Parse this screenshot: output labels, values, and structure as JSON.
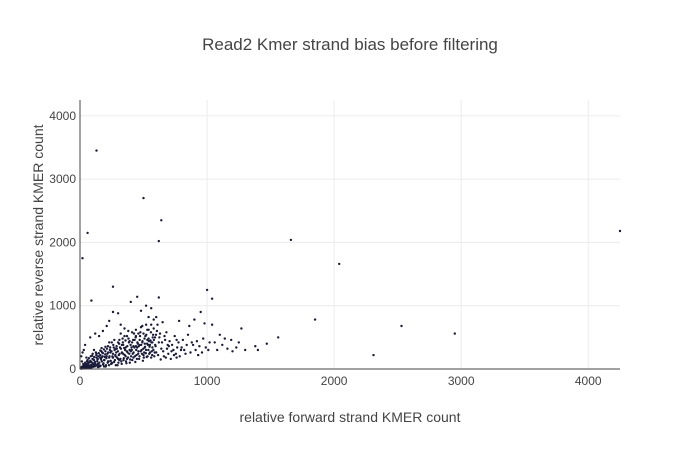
{
  "chart_data": {
    "type": "scatter",
    "title": "Read2 Kmer strand bias before filtering",
    "xlabel": "relative forward strand KMER count",
    "ylabel": "relative reverse strand KMER count",
    "xlim": [
      0,
      4250
    ],
    "ylim": [
      0,
      4250
    ],
    "xticks": [
      0,
      1000,
      2000,
      3000,
      4000
    ],
    "yticks": [
      0,
      1000,
      2000,
      3000,
      4000
    ],
    "grid": true,
    "legend": "none",
    "point_color": "#1a1a3a",
    "points": [
      [
        130,
        3450
      ],
      [
        500,
        2700
      ],
      [
        640,
        2350
      ],
      [
        620,
        2020
      ],
      [
        60,
        2150
      ],
      [
        20,
        1750
      ],
      [
        1660,
        2040
      ],
      [
        2040,
        1660
      ],
      [
        4250,
        2180
      ],
      [
        1850,
        780
      ],
      [
        2530,
        680
      ],
      [
        2950,
        560
      ],
      [
        2310,
        220
      ],
      [
        1560,
        500
      ],
      [
        1470,
        400
      ],
      [
        1400,
        300
      ],
      [
        1380,
        360
      ],
      [
        1270,
        640
      ],
      [
        1190,
        460
      ],
      [
        1140,
        480
      ],
      [
        1100,
        540
      ],
      [
        1230,
        340
      ],
      [
        1000,
        1250
      ],
      [
        1040,
        1110
      ],
      [
        950,
        900
      ],
      [
        900,
        780
      ],
      [
        860,
        680
      ],
      [
        780,
        760
      ],
      [
        980,
        720
      ],
      [
        1040,
        700
      ],
      [
        1060,
        420
      ],
      [
        990,
        340
      ],
      [
        920,
        440
      ],
      [
        890,
        380
      ],
      [
        850,
        540
      ],
      [
        820,
        300
      ],
      [
        760,
        460
      ],
      [
        700,
        360
      ],
      [
        680,
        580
      ],
      [
        620,
        1130
      ],
      [
        520,
        1000
      ],
      [
        480,
        920
      ],
      [
        450,
        1140
      ],
      [
        400,
        1060
      ],
      [
        260,
        1300
      ],
      [
        90,
        1080
      ],
      [
        560,
        960
      ],
      [
        580,
        780
      ],
      [
        600,
        820
      ],
      [
        530,
        620
      ],
      [
        540,
        820
      ],
      [
        490,
        680
      ],
      [
        440,
        520
      ],
      [
        350,
        640
      ],
      [
        320,
        700
      ],
      [
        300,
        880
      ],
      [
        260,
        900
      ],
      [
        230,
        760
      ],
      [
        210,
        680
      ],
      [
        180,
        600
      ],
      [
        150,
        520
      ],
      [
        120,
        560
      ],
      [
        80,
        500
      ],
      [
        40,
        380
      ],
      [
        30,
        300
      ],
      [
        20,
        260
      ],
      [
        10,
        200
      ],
      [
        15,
        120
      ],
      [
        25,
        80
      ],
      [
        45,
        60
      ],
      [
        60,
        140
      ],
      [
        75,
        30
      ],
      [
        90,
        110
      ],
      [
        100,
        240
      ],
      [
        110,
        300
      ],
      [
        130,
        180
      ],
      [
        140,
        80
      ],
      [
        160,
        220
      ],
      [
        170,
        330
      ],
      [
        190,
        140
      ],
      [
        200,
        280
      ],
      [
        220,
        360
      ],
      [
        230,
        180
      ],
      [
        250,
        420
      ],
      [
        260,
        240
      ],
      [
        280,
        320
      ],
      [
        300,
        160
      ],
      [
        310,
        460
      ],
      [
        330,
        260
      ],
      [
        340,
        380
      ],
      [
        360,
        200
      ],
      [
        370,
        520
      ],
      [
        390,
        300
      ],
      [
        410,
        420
      ],
      [
        420,
        180
      ],
      [
        440,
        360
      ],
      [
        460,
        280
      ],
      [
        470,
        460
      ],
      [
        500,
        220
      ],
      [
        510,
        400
      ],
      [
        520,
        300
      ],
      [
        540,
        480
      ],
      [
        560,
        180
      ],
      [
        570,
        340
      ],
      [
        600,
        260
      ],
      [
        620,
        420
      ],
      [
        640,
        320
      ],
      [
        660,
        200
      ],
      [
        690,
        380
      ],
      [
        720,
        280
      ],
      [
        740,
        220
      ],
      [
        800,
        340
      ],
      [
        760,
        180
      ],
      [
        50,
        180
      ],
      [
        35,
        40
      ],
      [
        65,
        90
      ],
      [
        85,
        200
      ],
      [
        95,
        50
      ],
      [
        105,
        150
      ],
      [
        115,
        70
      ],
      [
        125,
        260
      ],
      [
        135,
        120
      ],
      [
        145,
        200
      ],
      [
        155,
        40
      ],
      [
        165,
        150
      ],
      [
        175,
        260
      ],
      [
        185,
        90
      ],
      [
        195,
        190
      ],
      [
        205,
        60
      ],
      [
        215,
        240
      ],
      [
        225,
        120
      ],
      [
        235,
        300
      ],
      [
        245,
        80
      ],
      [
        255,
        200
      ],
      [
        265,
        340
      ],
      [
        275,
        140
      ],
      [
        285,
        260
      ],
      [
        295,
        60
      ],
      [
        305,
        220
      ],
      [
        315,
        340
      ],
      [
        325,
        120
      ],
      [
        335,
        480
      ],
      [
        345,
        170
      ],
      [
        355,
        300
      ],
      [
        365,
        90
      ],
      [
        375,
        260
      ],
      [
        385,
        420
      ],
      [
        395,
        150
      ],
      [
        405,
        340
      ],
      [
        415,
        240
      ],
      [
        425,
        560
      ],
      [
        435,
        110
      ],
      [
        445,
        220
      ],
      [
        455,
        400
      ],
      [
        465,
        160
      ],
      [
        475,
        580
      ],
      [
        485,
        300
      ],
      [
        495,
        130
      ],
      [
        505,
        260
      ],
      [
        515,
        520
      ],
      [
        525,
        190
      ],
      [
        535,
        380
      ],
      [
        545,
        240
      ],
      [
        555,
        450
      ],
      [
        565,
        280
      ],
      [
        575,
        540
      ],
      [
        585,
        200
      ],
      [
        595,
        360
      ],
      [
        605,
        600
      ],
      [
        615,
        220
      ],
      [
        625,
        500
      ],
      [
        635,
        150
      ],
      [
        645,
        420
      ],
      [
        655,
        280
      ],
      [
        665,
        520
      ],
      [
        675,
        180
      ],
      [
        685,
        320
      ],
      [
        695,
        240
      ],
      [
        705,
        440
      ],
      [
        715,
        160
      ],
      [
        725,
        380
      ],
      [
        735,
        300
      ],
      [
        745,
        520
      ],
      [
        755,
        240
      ],
      [
        765,
        340
      ],
      [
        775,
        420
      ],
      [
        785,
        200
      ],
      [
        795,
        300
      ],
      [
        810,
        460
      ],
      [
        830,
        240
      ],
      [
        840,
        380
      ],
      [
        870,
        260
      ],
      [
        880,
        420
      ],
      [
        910,
        300
      ],
      [
        930,
        220
      ],
      [
        940,
        360
      ],
      [
        960,
        260
      ],
      [
        970,
        480
      ],
      [
        1010,
        300
      ],
      [
        1020,
        420
      ],
      [
        1080,
        300
      ],
      [
        1120,
        380
      ],
      [
        1160,
        320
      ],
      [
        1200,
        280
      ],
      [
        1250,
        420
      ],
      [
        1300,
        300
      ],
      [
        5,
        10
      ],
      [
        8,
        25
      ],
      [
        12,
        5
      ],
      [
        18,
        35
      ],
      [
        22,
        15
      ],
      [
        28,
        50
      ],
      [
        32,
        20
      ],
      [
        38,
        65
      ],
      [
        42,
        30
      ],
      [
        48,
        10
      ],
      [
        52,
        80
      ],
      [
        58,
        45
      ],
      [
        62,
        20
      ],
      [
        68,
        100
      ],
      [
        72,
        55
      ],
      [
        78,
        15
      ],
      [
        82,
        130
      ],
      [
        88,
        70
      ],
      [
        92,
        25
      ],
      [
        98,
        160
      ],
      [
        102,
        90
      ],
      [
        108,
        35
      ],
      [
        112,
        190
      ],
      [
        118,
        110
      ],
      [
        122,
        45
      ],
      [
        128,
        220
      ],
      [
        132,
        60
      ],
      [
        138,
        150
      ],
      [
        142,
        30
      ],
      [
        148,
        250
      ],
      [
        152,
        100
      ],
      [
        158,
        180
      ],
      [
        162,
        50
      ],
      [
        168,
        280
      ],
      [
        172,
        120
      ],
      [
        178,
        200
      ],
      [
        182,
        70
      ],
      [
        188,
        310
      ],
      [
        192,
        140
      ],
      [
        198,
        230
      ],
      [
        202,
        40
      ],
      [
        208,
        170
      ],
      [
        212,
        320
      ],
      [
        218,
        100
      ],
      [
        222,
        260
      ],
      [
        228,
        60
      ],
      [
        232,
        200
      ],
      [
        238,
        340
      ],
      [
        242,
        130
      ],
      [
        248,
        280
      ],
      [
        252,
        90
      ],
      [
        258,
        180
      ],
      [
        262,
        380
      ],
      [
        268,
        110
      ],
      [
        272,
        300
      ],
      [
        278,
        220
      ],
      [
        282,
        60
      ],
      [
        288,
        360
      ],
      [
        292,
        180
      ],
      [
        298,
        280
      ],
      [
        302,
        100
      ],
      [
        308,
        400
      ],
      [
        312,
        240
      ],
      [
        318,
        160
      ],
      [
        322,
        320
      ],
      [
        328,
        80
      ],
      [
        332,
        250
      ],
      [
        338,
        420
      ],
      [
        342,
        140
      ],
      [
        348,
        330
      ],
      [
        352,
        220
      ],
      [
        358,
        450
      ],
      [
        362,
        120
      ],
      [
        368,
        280
      ],
      [
        372,
        360
      ],
      [
        378,
        180
      ],
      [
        382,
        480
      ],
      [
        388,
        240
      ],
      [
        392,
        100
      ],
      [
        398,
        380
      ],
      [
        402,
        200
      ],
      [
        408,
        300
      ],
      [
        412,
        140
      ],
      [
        418,
        460
      ],
      [
        422,
        260
      ],
      [
        428,
        340
      ],
      [
        432,
        200
      ],
      [
        438,
        500
      ],
      [
        442,
        300
      ],
      [
        448,
        160
      ],
      [
        452,
        420
      ],
      [
        458,
        240
      ],
      [
        462,
        360
      ],
      [
        468,
        200
      ],
      [
        472,
        520
      ],
      [
        478,
        280
      ],
      [
        482,
        380
      ],
      [
        488,
        240
      ],
      [
        492,
        440
      ],
      [
        498,
        320
      ],
      [
        502,
        180
      ],
      [
        508,
        480
      ],
      [
        512,
        350
      ],
      [
        518,
        250
      ],
      [
        522,
        540
      ],
      [
        528,
        400
      ],
      [
        532,
        200
      ],
      [
        538,
        300
      ],
      [
        542,
        440
      ],
      [
        548,
        350
      ],
      [
        552,
        260
      ],
      [
        558,
        580
      ],
      [
        562,
        420
      ],
      [
        568,
        220
      ],
      [
        572,
        500
      ],
      [
        578,
        300
      ],
      [
        582,
        460
      ],
      [
        588,
        260
      ],
      [
        592,
        380
      ],
      [
        598,
        540
      ],
      [
        20,
        40
      ],
      [
        30,
        10
      ],
      [
        40,
        100
      ],
      [
        50,
        30
      ],
      [
        55,
        120
      ],
      [
        65,
        60
      ],
      [
        70,
        170
      ],
      [
        75,
        110
      ],
      [
        85,
        40
      ],
      [
        95,
        210
      ],
      [
        105,
        60
      ],
      [
        110,
        140
      ],
      [
        120,
        80
      ],
      [
        130,
        240
      ],
      [
        140,
        160
      ],
      [
        150,
        60
      ],
      [
        160,
        290
      ],
      [
        170,
        180
      ],
      [
        180,
        250
      ],
      [
        190,
        40
      ],
      [
        200,
        350
      ],
      [
        210,
        200
      ],
      [
        220,
        120
      ],
      [
        230,
        420
      ],
      [
        240,
        260
      ],
      [
        250,
        100
      ],
      [
        260,
        180
      ],
      [
        270,
        460
      ],
      [
        280,
        200
      ],
      [
        290,
        320
      ],
      [
        300,
        420
      ],
      [
        310,
        140
      ],
      [
        320,
        560
      ],
      [
        330,
        380
      ],
      [
        340,
        240
      ],
      [
        350,
        520
      ],
      [
        360,
        340
      ],
      [
        370,
        160
      ],
      [
        380,
        600
      ],
      [
        390,
        440
      ],
      [
        400,
        280
      ],
      [
        410,
        580
      ],
      [
        420,
        360
      ],
      [
        430,
        460
      ],
      [
        440,
        620
      ],
      [
        450,
        340
      ],
      [
        460,
        560
      ],
      [
        470,
        380
      ],
      [
        480,
        660
      ],
      [
        490,
        420
      ],
      [
        500,
        560
      ],
      [
        510,
        340
      ],
      [
        520,
        700
      ],
      [
        530,
        460
      ],
      [
        540,
        620
      ],
      [
        550,
        380
      ],
      [
        560,
        700
      ],
      [
        570,
        420
      ],
      [
        580,
        640
      ],
      [
        590,
        500
      ],
      [
        610,
        700
      ],
      [
        630,
        560
      ],
      [
        650,
        740
      ],
      [
        670,
        460
      ]
    ]
  }
}
